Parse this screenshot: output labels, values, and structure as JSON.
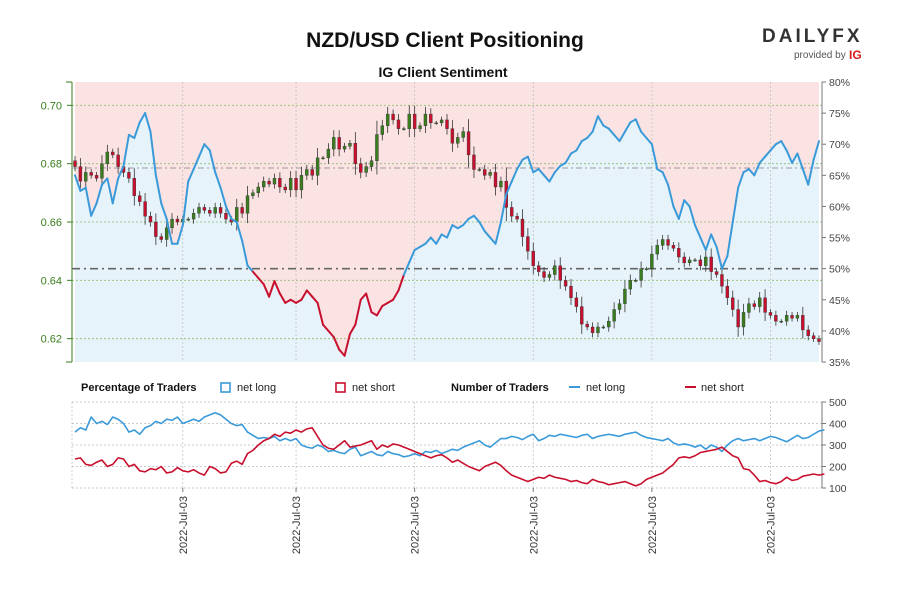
{
  "header": {
    "title": "NZD/USD Client Positioning",
    "subtitle": "IG Client Sentiment"
  },
  "brand": {
    "name_left": "DAILY",
    "name_right": "FX",
    "provided_by": "provided by",
    "ig": "IG"
  },
  "colors": {
    "net_long": "#3a9ad9",
    "net_short": "#c8102e",
    "candle_up": "#3a7d1e",
    "candle_down": "#c8102e",
    "bg_long": "#e6f3fb",
    "bg_short": "#fbe3e3",
    "price_axis": "#3a7d1e"
  },
  "legend": {
    "pct_heading": "Percentage of Traders",
    "num_heading": "Number of Traders",
    "net_long": "net long",
    "net_short": "net short"
  },
  "chart_data": [
    {
      "type": "candlestick+line",
      "title": "NZD/USD Client Positioning",
      "subtitle": "IG Client Sentiment",
      "price_axis": {
        "ylim": [
          0.612,
          0.708
        ],
        "ticks": [
          0.62,
          0.64,
          0.66,
          0.68,
          0.7
        ],
        "tick_labels": [
          "0.62",
          "0.64",
          "0.66",
          "0.68",
          "0.70"
        ]
      },
      "pct_axis": {
        "ylim": [
          35,
          80
        ],
        "ticks": [
          35,
          40,
          45,
          50,
          55,
          60,
          65,
          70,
          75,
          80
        ],
        "tick_labels": [
          "35%",
          "40%",
          "45%",
          "50%",
          "55%",
          "60%",
          "65%",
          "70%",
          "75%",
          "80%"
        ]
      },
      "reference_lines": {
        "pct_50": 50,
        "price_level": 0.6785
      },
      "x_tick_labels": [
        "2022-Jul-03",
        "2022-Jul-03",
        "2022-Jul-03",
        "2022-Jul-03",
        "2022-Jul-03",
        "2022-Jul-03"
      ],
      "x_tick_index": [
        20,
        41,
        63,
        85,
        107,
        129
      ],
      "close": [
        0.679,
        0.674,
        0.677,
        0.676,
        0.675,
        0.68,
        0.684,
        0.683,
        0.679,
        0.677,
        0.675,
        0.669,
        0.667,
        0.662,
        0.66,
        0.655,
        0.654,
        0.658,
        0.661,
        0.66,
        0.661,
        0.661,
        0.663,
        0.665,
        0.664,
        0.663,
        0.665,
        0.663,
        0.661,
        0.66,
        0.665,
        0.663,
        0.669,
        0.67,
        0.672,
        0.674,
        0.673,
        0.675,
        0.672,
        0.671,
        0.675,
        0.671,
        0.676,
        0.678,
        0.676,
        0.682,
        0.682,
        0.685,
        0.689,
        0.685,
        0.686,
        0.687,
        0.68,
        0.677,
        0.679,
        0.681,
        0.69,
        0.693,
        0.697,
        0.695,
        0.692,
        0.692,
        0.697,
        0.692,
        0.693,
        0.697,
        0.694,
        0.694,
        0.695,
        0.692,
        0.687,
        0.689,
        0.691,
        0.683,
        0.678,
        0.678,
        0.676,
        0.677,
        0.672,
        0.674,
        0.665,
        0.662,
        0.661,
        0.655,
        0.65,
        0.645,
        0.643,
        0.641,
        0.642,
        0.645,
        0.64,
        0.638,
        0.634,
        0.631,
        0.625,
        0.624,
        0.622,
        0.624,
        0.624,
        0.626,
        0.63,
        0.632,
        0.637,
        0.64,
        0.64,
        0.644,
        0.644,
        0.649,
        0.652,
        0.654,
        0.652,
        0.651,
        0.648,
        0.646,
        0.647,
        0.647,
        0.645,
        0.648,
        0.643,
        0.642,
        0.638,
        0.634,
        0.63,
        0.624,
        0.629,
        0.632,
        0.631,
        0.634,
        0.629,
        0.628,
        0.626,
        0.626,
        0.628,
        0.627,
        0.628,
        0.623,
        0.621,
        0.62,
        0.619
      ],
      "pct_net_long": [
        65.0,
        62.5,
        63.0,
        58.5,
        60.5,
        63.5,
        64.5,
        60.5,
        64.5,
        66.5,
        71.5,
        71.0,
        73.5,
        75.0,
        72.0,
        65.0,
        60.5,
        58.0,
        54.0,
        54.0,
        57.0,
        64.0,
        66.0,
        68.0,
        70.0,
        69.0,
        65.5,
        63.0,
        60.0,
        58.0,
        57.5,
        54.5,
        50.5,
        49.5,
        48.5,
        47.5,
        45.5,
        48.0,
        46.0,
        44.5,
        45.0,
        44.5,
        45.0,
        46.5,
        45.5,
        44.5,
        41.0,
        40.0,
        39.0,
        37.0,
        36.0,
        39.5,
        41.0,
        45.0,
        46.0,
        43.0,
        42.5,
        44.0,
        44.5,
        45.0,
        46.5,
        49.0,
        51.0,
        53.0,
        53.5,
        54.0,
        55.0,
        54.0,
        55.5,
        55.0,
        57.0,
        56.5,
        57.0,
        58.0,
        58.5,
        57.5,
        56.0,
        55.0,
        54.0,
        57.5,
        62.0,
        64.0,
        66.0,
        67.5,
        68.0,
        65.5,
        66.0,
        65.0,
        64.0,
        65.5,
        66.5,
        67.0,
        68.5,
        69.0,
        70.5,
        71.0,
        72.0,
        74.5,
        73.0,
        72.5,
        71.5,
        70.5,
        72.0,
        73.5,
        74.0,
        72.0,
        71.0,
        70.0,
        66.0,
        65.5,
        63.5,
        60.0,
        58.0,
        61.0,
        60.0,
        57.0,
        55.0,
        53.0,
        55.5,
        53.5,
        50.0,
        52.0,
        57.5,
        63.0,
        65.5,
        66.0,
        65.0,
        67.0,
        68.0,
        69.0,
        70.0,
        70.5,
        69.0,
        67.0,
        68.5,
        66.0,
        63.5,
        67.5,
        70.5
      ],
      "series": [
        {
          "name": "net long",
          "role": "pct_net_long"
        },
        {
          "name": "net short",
          "role": "pct_net_short = 100 - net long"
        }
      ]
    },
    {
      "type": "line",
      "y_axis": {
        "ylim": [
          100,
          500
        ],
        "ticks": [
          100,
          200,
          300,
          400,
          500
        ],
        "tick_labels": [
          "100",
          "200",
          "300",
          "400",
          "500"
        ]
      },
      "series": [
        {
          "name": "net long",
          "values": [
            360,
            380,
            370,
            430,
            400,
            410,
            395,
            430,
            420,
            400,
            360,
            370,
            350,
            380,
            390,
            410,
            400,
            420,
            415,
            430,
            400,
            410,
            420,
            410,
            430,
            440,
            450,
            440,
            420,
            400,
            390,
            395,
            360,
            345,
            330,
            335,
            330,
            340,
            320,
            330,
            320,
            330,
            300,
            290,
            285,
            300,
            290,
            270,
            275,
            265,
            260,
            280,
            290,
            250,
            260,
            270,
            255,
            250,
            270,
            260,
            255,
            245,
            250,
            260,
            250,
            270,
            265,
            275,
            260,
            270,
            280,
            275,
            290,
            300,
            310,
            320,
            300,
            290,
            310,
            330,
            330,
            340,
            335,
            325,
            340,
            350,
            320,
            330,
            345,
            340,
            350,
            345,
            340,
            335,
            345,
            350,
            330,
            340,
            345,
            350,
            345,
            340,
            350,
            355,
            360,
            345,
            335,
            330,
            325,
            320,
            330,
            310,
            300,
            305,
            300,
            290,
            300,
            280,
            300,
            290,
            270,
            300,
            320,
            330,
            320,
            325,
            330,
            320,
            330,
            340,
            335,
            325,
            315,
            330,
            345,
            330,
            335,
            350,
            365,
            370
          ]
        },
        {
          "name": "net short",
          "values": [
            235,
            240,
            210,
            205,
            220,
            230,
            200,
            210,
            240,
            235,
            200,
            210,
            180,
            175,
            190,
            185,
            200,
            170,
            175,
            195,
            180,
            175,
            185,
            170,
            160,
            200,
            190,
            170,
            175,
            215,
            225,
            210,
            260,
            275,
            300,
            320,
            330,
            350,
            340,
            360,
            355,
            370,
            360,
            375,
            380,
            340,
            300,
            285,
            280,
            300,
            320,
            290,
            295,
            300,
            310,
            320,
            280,
            300,
            290,
            305,
            300,
            290,
            280,
            270,
            260,
            250,
            240,
            250,
            255,
            240,
            220,
            230,
            215,
            200,
            190,
            180,
            200,
            210,
            220,
            205,
            180,
            160,
            150,
            140,
            130,
            140,
            150,
            145,
            160,
            150,
            145,
            140,
            130,
            135,
            125,
            120,
            140,
            130,
            125,
            115,
            120,
            125,
            130,
            120,
            110,
            120,
            140,
            150,
            160,
            170,
            190,
            210,
            240,
            245,
            240,
            250,
            265,
            270,
            275,
            280,
            290,
            270,
            250,
            240,
            190,
            185,
            160,
            130,
            135,
            125,
            120,
            130,
            150,
            135,
            140,
            155,
            160,
            165,
            160,
            165
          ]
        }
      ]
    }
  ]
}
